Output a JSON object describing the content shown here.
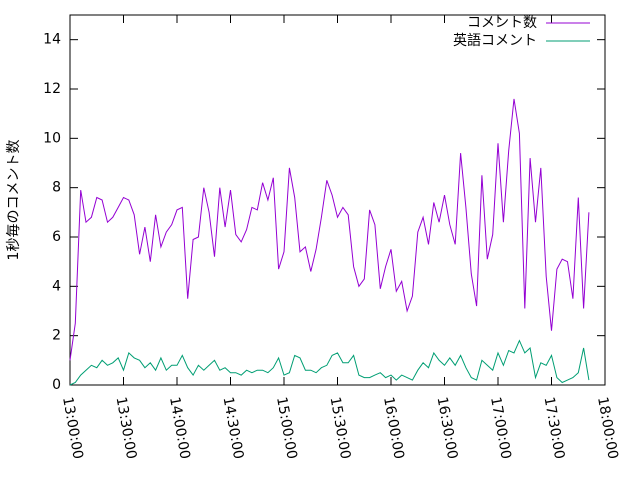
{
  "chart_data": {
    "type": "line",
    "y_label": "1秒毎のコメント数",
    "x": [
      780,
      783,
      786,
      789,
      792,
      795,
      798,
      801,
      804,
      807,
      810,
      813,
      816,
      819,
      822,
      825,
      828,
      831,
      834,
      837,
      840,
      843,
      846,
      849,
      852,
      855,
      858,
      861,
      864,
      867,
      870,
      873,
      876,
      879,
      882,
      885,
      888,
      891,
      894,
      897,
      900,
      903,
      906,
      909,
      912,
      915,
      918,
      921,
      924,
      927,
      930,
      933,
      936,
      939,
      942,
      945,
      948,
      951,
      954,
      957,
      960,
      963,
      966,
      969,
      972,
      975,
      978,
      981,
      984,
      987,
      990,
      993,
      996,
      999,
      1002,
      1005,
      1008,
      1011,
      1014,
      1017,
      1020,
      1023,
      1026,
      1029,
      1032,
      1035,
      1038,
      1041,
      1044,
      1047,
      1050,
      1053,
      1056,
      1059,
      1062,
      1065,
      1068,
      1071
    ],
    "series": [
      {
        "name": "コメント数",
        "color": "#9400d3",
        "values": [
          1.0,
          2.5,
          7.9,
          6.6,
          6.8,
          7.6,
          7.5,
          6.6,
          6.8,
          7.2,
          7.6,
          7.5,
          6.9,
          5.3,
          6.4,
          5.0,
          6.9,
          5.6,
          6.2,
          6.5,
          7.1,
          7.2,
          3.5,
          5.9,
          6.0,
          8.0,
          7.0,
          5.2,
          8.0,
          6.4,
          7.9,
          6.1,
          5.8,
          6.3,
          7.2,
          7.1,
          8.2,
          7.5,
          8.4,
          4.7,
          5.4,
          8.8,
          7.6,
          5.4,
          5.6,
          4.6,
          5.5,
          6.8,
          8.3,
          7.7,
          6.8,
          7.2,
          6.9,
          4.8,
          4.0,
          4.3,
          7.1,
          6.5,
          3.9,
          4.8,
          5.5,
          3.8,
          4.2,
          3.0,
          3.6,
          6.2,
          6.8,
          5.7,
          7.4,
          6.6,
          7.7,
          6.5,
          5.7,
          9.4,
          7.2,
          4.5,
          3.2,
          8.5,
          5.1,
          6.1,
          9.8,
          6.6,
          9.5,
          11.6,
          10.2,
          3.1,
          9.2,
          6.6,
          8.8,
          4.4,
          2.2,
          4.7,
          5.1,
          5.0,
          3.5,
          7.6,
          3.1,
          7.0
        ]
      },
      {
        "name": "英語コメント",
        "color": "#009e73",
        "values": [
          0,
          0.1,
          0.4,
          0.6,
          0.8,
          0.7,
          1.0,
          0.8,
          0.9,
          1.1,
          0.6,
          1.3,
          1.1,
          1.0,
          0.7,
          0.9,
          0.6,
          1.1,
          0.6,
          0.8,
          0.8,
          1.2,
          0.7,
          0.4,
          0.8,
          0.6,
          0.8,
          1.0,
          0.6,
          0.7,
          0.5,
          0.5,
          0.4,
          0.6,
          0.5,
          0.6,
          0.6,
          0.5,
          0.7,
          1.1,
          0.4,
          0.5,
          1.2,
          1.1,
          0.6,
          0.6,
          0.5,
          0.7,
          0.8,
          1.2,
          1.3,
          0.9,
          0.9,
          1.2,
          0.4,
          0.3,
          0.3,
          0.4,
          0.5,
          0.3,
          0.4,
          0.2,
          0.4,
          0.3,
          0.2,
          0.6,
          0.9,
          0.7,
          1.3,
          1.0,
          0.8,
          1.1,
          0.8,
          1.2,
          0.7,
          0.3,
          0.2,
          1.0,
          0.8,
          0.6,
          1.3,
          0.8,
          1.4,
          1.3,
          1.8,
          1.3,
          1.5,
          0.3,
          0.9,
          0.8,
          1.2,
          0.3,
          0.1,
          0.2,
          0.3,
          0.5,
          1.5,
          0.2
        ]
      }
    ],
    "xlim": [
      780,
      1080
    ],
    "xticks": [
      {
        "value": 780,
        "label": "13:00:00"
      },
      {
        "value": 810,
        "label": "13:30:00"
      },
      {
        "value": 840,
        "label": "14:00:00"
      },
      {
        "value": 870,
        "label": "14:30:00"
      },
      {
        "value": 900,
        "label": "15:00:00"
      },
      {
        "value": 930,
        "label": "15:30:00"
      },
      {
        "value": 960,
        "label": "16:00:00"
      },
      {
        "value": 990,
        "label": "16:30:00"
      },
      {
        "value": 1020,
        "label": "17:00:00"
      },
      {
        "value": 1050,
        "label": "17:30:00"
      },
      {
        "value": 1080,
        "label": "18:00:00"
      }
    ],
    "ylim": [
      0,
      15
    ],
    "yticks": [
      0,
      2,
      4,
      6,
      8,
      10,
      12,
      14
    ],
    "legend": "top-right"
  }
}
